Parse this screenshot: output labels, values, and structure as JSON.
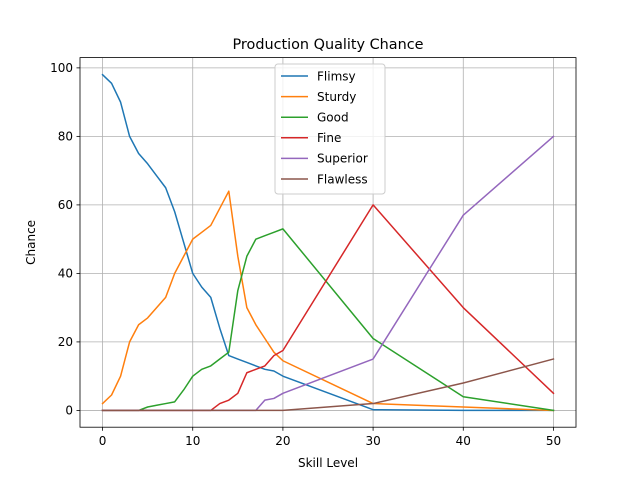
{
  "chart_data": {
    "type": "line",
    "title": "Production Quality Chance",
    "xlabel": "Skill Level",
    "ylabel": "Chance",
    "xlim": [
      -2.5,
      52.5
    ],
    "ylim": [
      -4.9,
      103
    ],
    "xticks": [
      0,
      10,
      20,
      30,
      40,
      50
    ],
    "yticks": [
      0,
      20,
      40,
      60,
      80,
      100
    ],
    "grid": true,
    "legend_position": "top-center",
    "series": [
      {
        "name": "Flimsy",
        "color": "#1f77b4",
        "x": [
          0,
          1,
          2,
          3,
          4,
          5,
          6,
          7,
          8,
          9,
          10,
          11,
          12,
          13,
          14,
          15,
          16,
          17,
          18,
          19,
          20,
          30,
          40,
          50
        ],
        "y": [
          98,
          95.5,
          90,
          80,
          75,
          72,
          68.5,
          65,
          58,
          49,
          40,
          36,
          33,
          24,
          16,
          15,
          14,
          13,
          12,
          11.5,
          10,
          0.2,
          0,
          0
        ]
      },
      {
        "name": "Sturdy",
        "color": "#ff7f0e",
        "x": [
          0,
          1,
          2,
          3,
          4,
          5,
          6,
          7,
          8,
          9,
          10,
          11,
          12,
          13,
          14,
          15,
          16,
          17,
          18,
          19,
          20,
          30,
          40,
          50
        ],
        "y": [
          2,
          4.5,
          10,
          20,
          25,
          27,
          30,
          33,
          40,
          45,
          50,
          52,
          54,
          59,
          64,
          45,
          30,
          25,
          21,
          17,
          14.5,
          2,
          1,
          0
        ]
      },
      {
        "name": "Good",
        "color": "#2ca02c",
        "x": [
          0,
          1,
          2,
          3,
          4,
          5,
          6,
          7,
          8,
          9,
          10,
          11,
          12,
          13,
          14,
          15,
          16,
          17,
          18,
          19,
          20,
          30,
          40,
          50
        ],
        "y": [
          0,
          0,
          0,
          0,
          0,
          1,
          1.5,
          2,
          2.5,
          6,
          10,
          12,
          13,
          15,
          17,
          35,
          45,
          50,
          51,
          52,
          53,
          21,
          4,
          0
        ]
      },
      {
        "name": "Fine",
        "color": "#d62728",
        "x": [
          0,
          1,
          2,
          3,
          4,
          5,
          6,
          7,
          8,
          9,
          10,
          11,
          12,
          13,
          14,
          15,
          16,
          17,
          18,
          19,
          20,
          30,
          40,
          50
        ],
        "y": [
          0,
          0,
          0,
          0,
          0,
          0,
          0,
          0,
          0,
          0,
          0,
          0,
          0,
          2,
          3,
          5,
          11,
          12,
          13,
          16,
          17.5,
          60,
          30,
          5
        ]
      },
      {
        "name": "Superior",
        "color": "#9467bd",
        "x": [
          0,
          1,
          2,
          3,
          4,
          5,
          6,
          7,
          8,
          9,
          10,
          11,
          12,
          13,
          14,
          15,
          16,
          17,
          18,
          19,
          20,
          30,
          40,
          50
        ],
        "y": [
          0,
          0,
          0,
          0,
          0,
          0,
          0,
          0,
          0,
          0,
          0,
          0,
          0,
          0,
          0,
          0,
          0,
          0,
          3,
          3.5,
          5,
          15,
          57,
          80
        ]
      },
      {
        "name": "Flawless",
        "color": "#8c564b",
        "x": [
          0,
          1,
          2,
          3,
          4,
          5,
          6,
          7,
          8,
          9,
          10,
          11,
          12,
          13,
          14,
          15,
          16,
          17,
          18,
          19,
          20,
          30,
          40,
          50
        ],
        "y": [
          0,
          0,
          0,
          0,
          0,
          0,
          0,
          0,
          0,
          0,
          0,
          0,
          0,
          0,
          0,
          0,
          0,
          0,
          0,
          0,
          0,
          2,
          8,
          15
        ]
      }
    ]
  }
}
